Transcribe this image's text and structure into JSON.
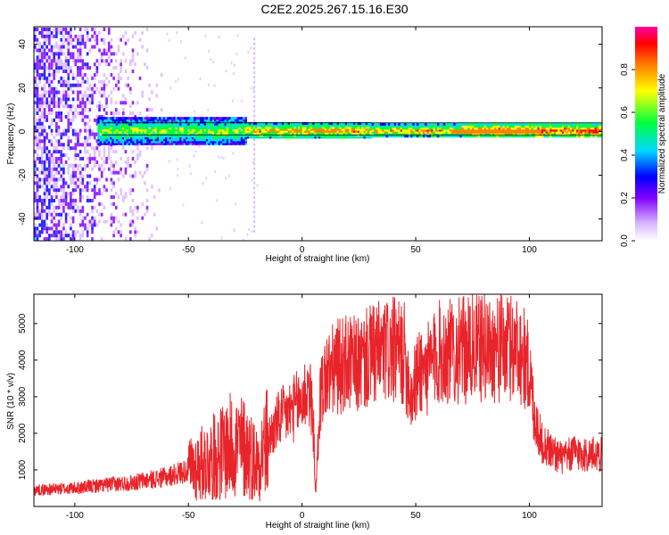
{
  "title": "C2E2.2025.267.15.16.E30",
  "colors": {
    "signal": "#e8242a",
    "frame": "#000000"
  },
  "chart_data": [
    {
      "type": "heatmap",
      "xlabel": "Height of straight line (km)",
      "ylabel": "Frequency (Hz)",
      "xlim": [
        -118,
        132
      ],
      "ylim": [
        -50,
        48
      ],
      "xticks": [
        -100,
        -50,
        0,
        50,
        100
      ],
      "xtick_labels": [
        "-100",
        "-50",
        "0",
        "50",
        "100"
      ],
      "yticks": [
        -40,
        -20,
        0,
        20,
        40
      ],
      "ytick_labels": [
        "-40",
        "-20",
        "0",
        "20",
        "40"
      ],
      "colorbar": {
        "label": "Normalized spectral amplitude",
        "range": [
          0,
          1
        ],
        "ticks": [
          0,
          0.2,
          0.4,
          0.6,
          0.8
        ],
        "tick_labels": [
          "0.0",
          "0.2",
          "0.4",
          "0.6",
          "0.8"
        ]
      },
      "bands": [
        {
          "description": "sparse noise",
          "x": [
            -118,
            -60
          ],
          "freq": [
            -50,
            48
          ]
        },
        {
          "description": "signal band",
          "x": [
            -90,
            132
          ],
          "freq": [
            -3,
            5
          ]
        },
        {
          "description": "vertical artifact",
          "x": [
            -21,
            -21
          ],
          "freq": [
            -45,
            45
          ]
        }
      ]
    },
    {
      "type": "line",
      "xlabel": "Height of straight line (km)",
      "ylabel": "SNR (10 * v/v)",
      "xlim": [
        -118,
        132
      ],
      "ylim": [
        0,
        5800
      ],
      "xticks": [
        -100,
        -50,
        0,
        50,
        100
      ],
      "xtick_labels": [
        "-100",
        "-50",
        "0",
        "50",
        "100"
      ],
      "yticks": [
        1000,
        2000,
        3000,
        4000,
        5000
      ],
      "ytick_labels": [
        "1000",
        "2000",
        "3000",
        "4000",
        "5000"
      ],
      "series": [
        {
          "name": "SNR",
          "x": [
            -118,
            -100,
            -85,
            -75,
            -60,
            -50,
            -40,
            -30,
            -25,
            -20,
            -15,
            -10,
            -5,
            0,
            3,
            5,
            6,
            8,
            10,
            15,
            20,
            25,
            30,
            35,
            40,
            45,
            48,
            50,
            52,
            55,
            60,
            70,
            80,
            90,
            95,
            98,
            100,
            102,
            105,
            110,
            115,
            120,
            125,
            132
          ],
          "values": [
            450,
            500,
            600,
            650,
            800,
            1000,
            1300,
            1700,
            1600,
            1200,
            1800,
            2400,
            2600,
            2900,
            3300,
            2200,
            300,
            3000,
            3500,
            3800,
            3900,
            3850,
            4100,
            4200,
            4250,
            4150,
            3000,
            3400,
            3800,
            3700,
            4200,
            4250,
            4350,
            4300,
            4400,
            4000,
            3700,
            2600,
            1800,
            1500,
            1300,
            1500,
            1400,
            1450
          ]
        }
      ]
    }
  ]
}
